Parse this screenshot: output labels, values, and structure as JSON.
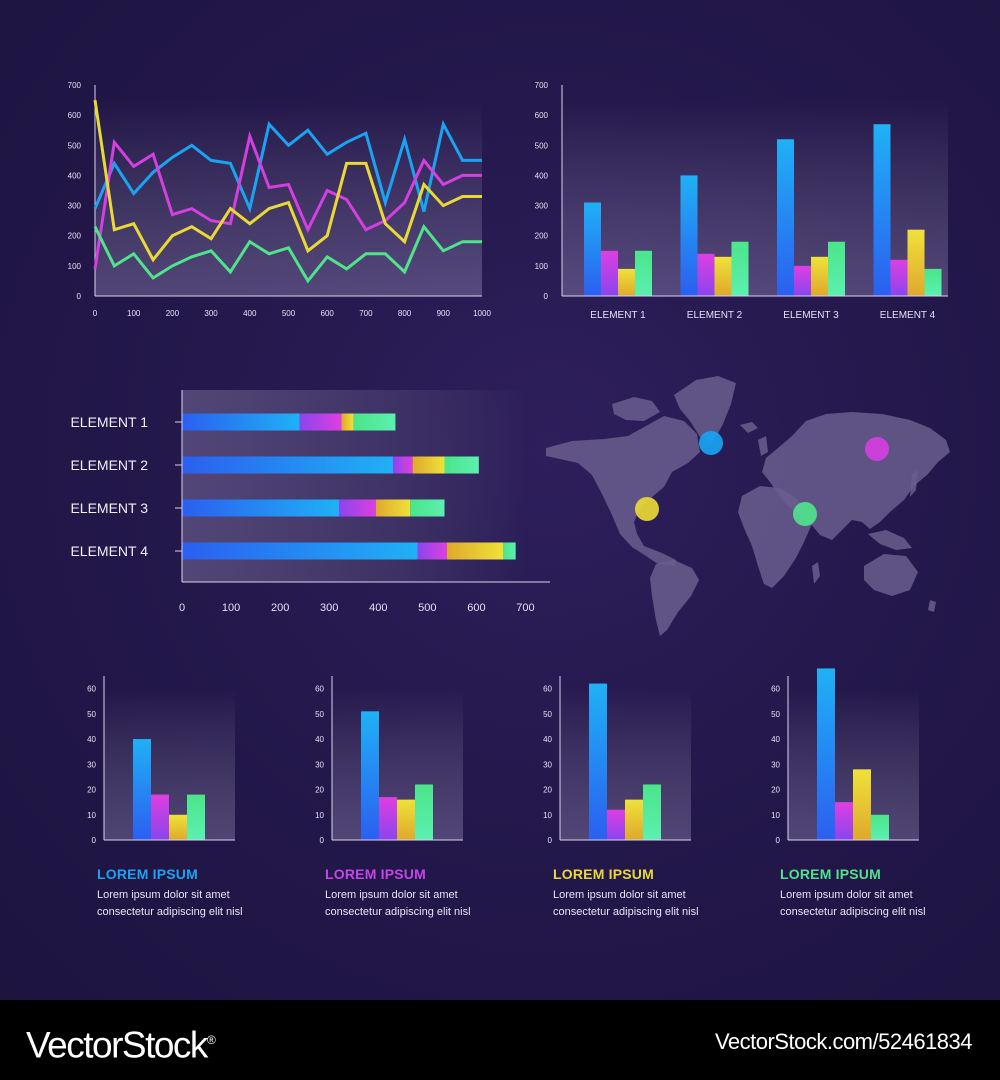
{
  "colors": {
    "blue": "#1aa3f2",
    "magenta": "#d43fe0",
    "yellow": "#e9d935",
    "green": "#4fe38c"
  },
  "chart_data": [
    {
      "type": "line",
      "x": [
        0,
        50,
        100,
        150,
        200,
        250,
        300,
        350,
        400,
        450,
        500,
        550,
        600,
        650,
        700,
        750,
        800,
        850,
        900,
        950,
        1000
      ],
      "series": [
        {
          "values": [
            290,
            440,
            340,
            410,
            460,
            500,
            450,
            440,
            290,
            570,
            500,
            550,
            470,
            510,
            540,
            310,
            520,
            280,
            570,
            450,
            450
          ]
        },
        {
          "values": [
            90,
            510,
            430,
            470,
            270,
            290,
            250,
            240,
            530,
            360,
            370,
            220,
            350,
            320,
            220,
            250,
            310,
            450,
            370,
            400,
            400
          ]
        },
        {
          "values": [
            650,
            220,
            240,
            120,
            200,
            230,
            190,
            290,
            240,
            290,
            310,
            150,
            200,
            440,
            440,
            240,
            180,
            370,
            300,
            330,
            330
          ]
        },
        {
          "values": [
            230,
            100,
            140,
            60,
            100,
            130,
            150,
            80,
            180,
            140,
            160,
            50,
            130,
            90,
            140,
            140,
            80,
            230,
            150,
            180,
            180
          ]
        }
      ],
      "ylim": [
        0,
        700
      ],
      "yticks": [
        "0",
        "100",
        "200",
        "300",
        "400",
        "500",
        "600",
        "700"
      ],
      "xticks": [
        "0",
        "100",
        "200",
        "300",
        "400",
        "500",
        "600",
        "700",
        "800",
        "900",
        "1000"
      ],
      "title": "",
      "xlabel": "",
      "ylabel": ""
    },
    {
      "type": "bar",
      "categories": [
        "ELEMENT 1",
        "ELEMENT 2",
        "ELEMENT 3",
        "ELEMENT 4"
      ],
      "series": [
        {
          "values": [
            310,
            400,
            520,
            570
          ]
        },
        {
          "values": [
            150,
            140,
            100,
            120
          ]
        },
        {
          "values": [
            90,
            130,
            130,
            220
          ]
        },
        {
          "values": [
            150,
            180,
            180,
            90
          ]
        }
      ],
      "ylim": [
        0,
        700
      ],
      "yticks": [
        "0",
        "100",
        "200",
        "300",
        "400",
        "500",
        "600",
        "700"
      ],
      "title": "",
      "xlabel": "",
      "ylabel": ""
    },
    {
      "type": "bar",
      "orientation": "horizontal",
      "stacked": true,
      "categories": [
        "ELEMENT 1",
        "ELEMENT 2",
        "ELEMENT 3",
        "ELEMENT 4"
      ],
      "series": [
        {
          "values": [
            240,
            430,
            320,
            480
          ]
        },
        {
          "values": [
            85,
            40,
            75,
            60
          ]
        },
        {
          "values": [
            25,
            65,
            70,
            115
          ]
        },
        {
          "values": [
            85,
            70,
            70,
            25
          ]
        }
      ],
      "xlim": [
        0,
        750
      ],
      "xticks": [
        "0",
        "100",
        "200",
        "300",
        "400",
        "500",
        "600",
        "700"
      ],
      "title": "",
      "xlabel": "",
      "ylabel": ""
    },
    {
      "type": "bar",
      "values": [
        40,
        18,
        10,
        18
      ],
      "ylim": [
        0,
        65
      ],
      "yticks": [
        "0",
        "10",
        "20",
        "30",
        "40",
        "50",
        "60"
      ],
      "title": "",
      "xlabel": "",
      "ylabel": ""
    },
    {
      "type": "bar",
      "values": [
        51,
        17,
        16,
        22
      ],
      "ylim": [
        0,
        65
      ],
      "yticks": [
        "0",
        "10",
        "20",
        "30",
        "40",
        "50",
        "60"
      ],
      "title": "",
      "xlabel": "",
      "ylabel": ""
    },
    {
      "type": "bar",
      "values": [
        62,
        12,
        16,
        22
      ],
      "ylim": [
        0,
        65
      ],
      "yticks": [
        "0",
        "10",
        "20",
        "30",
        "40",
        "50",
        "60"
      ],
      "title": "",
      "xlabel": "",
      "ylabel": ""
    },
    {
      "type": "bar",
      "values": [
        68,
        15,
        28,
        10
      ],
      "ylim": [
        0,
        65
      ],
      "yticks": [
        "0",
        "10",
        "20",
        "30",
        "40",
        "50",
        "60"
      ],
      "title": "",
      "xlabel": "",
      "ylabel": ""
    }
  ],
  "map": {
    "markers": [
      {
        "color": "#1aa3f2",
        "name": "marker-greenland"
      },
      {
        "color": "#e9d935",
        "name": "marker-north-america"
      },
      {
        "color": "#4fe38c",
        "name": "marker-south-asia"
      },
      {
        "color": "#d43fe0",
        "name": "marker-siberia"
      }
    ]
  },
  "cards": [
    {
      "title": "LOREM IPSUM",
      "line1": "Lorem ipsum dolor sit amet",
      "line2": "consectetur adipiscing elit nisl",
      "color": "#1aa3f2"
    },
    {
      "title": "LOREM IPSUM",
      "line1": "Lorem ipsum dolor sit amet",
      "line2": "consectetur adipiscing elit nisl",
      "color": "#c446e6"
    },
    {
      "title": "LOREM IPSUM",
      "line1": "Lorem ipsum dolor sit amet",
      "line2": "consectetur adipiscing elit nisl",
      "color": "#e9d935"
    },
    {
      "title": "LOREM IPSUM",
      "line1": "Lorem ipsum dolor sit amet",
      "line2": "consectetur adipiscing elit nisl",
      "color": "#4fe38c"
    }
  ],
  "footer": {
    "logo": "VectorStock",
    "logo_mark": "®",
    "stock_id": "VectorStock.com/52461834"
  }
}
